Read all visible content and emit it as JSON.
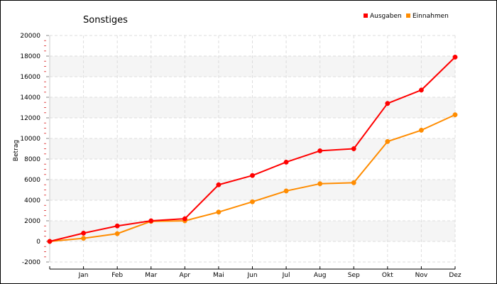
{
  "chart_data": {
    "type": "line",
    "title": "Sonstiges",
    "xlabel": "",
    "ylabel": "Betrag",
    "categories": [
      "",
      "Jan",
      "Feb",
      "Mar",
      "Apr",
      "Mai",
      "Jun",
      "Jul",
      "Aug",
      "Sep",
      "Okt",
      "Nov",
      "Dez"
    ],
    "ylim": [
      -2000,
      20000
    ],
    "yticks": [
      -2000,
      0,
      2000,
      4000,
      6000,
      8000,
      10000,
      12000,
      14000,
      16000,
      18000,
      20000
    ],
    "ytick_labels": [
      "-2000",
      "0",
      "2000",
      "4000",
      "6000",
      "8000",
      "10000",
      "12000",
      "14000",
      "16000",
      "18000",
      "20000"
    ],
    "grid": true,
    "legend_position": "top-right",
    "series": [
      {
        "name": "Ausgaben",
        "color": "#ff0000",
        "values": [
          0,
          800,
          1500,
          2000,
          2200,
          5500,
          6400,
          7700,
          8800,
          9000,
          13400,
          14700,
          17900
        ]
      },
      {
        "name": "Einnahmen",
        "color": "#ff8c00",
        "values": [
          0,
          300,
          750,
          1950,
          2000,
          2850,
          3850,
          4900,
          5600,
          5700,
          9700,
          10800,
          12300
        ]
      }
    ]
  }
}
